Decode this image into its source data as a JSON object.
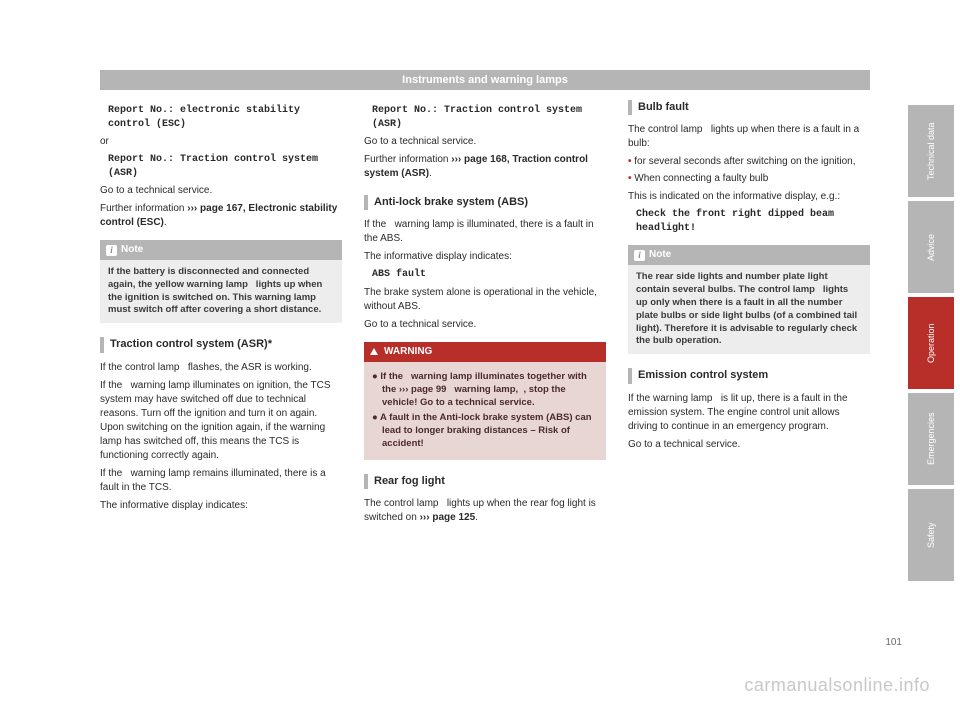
{
  "chapter_title": "Instruments and warning lamps",
  "page_number": "101",
  "watermark": "carmanualsonline.info",
  "sidetabs": [
    "Technical data",
    "Advice",
    "Operation",
    "Emergencies",
    "Safety"
  ],
  "col1": {
    "mono1": "Report No.: electronic stability control (ESC)",
    "or": "or",
    "mono2": "Report No.: Traction control system (ASR)",
    "goto": "Go to a technical service.",
    "further_a": "Further information ",
    "further_ref": "››› page 167, Electronic stability control (ESC)",
    "further_dot": ".",
    "note_label": "Note",
    "note_body": "If the battery is disconnected and connected again, the yellow warning lamp   lights up when the ignition is switched on. This warning lamp must switch off after covering a short distance.",
    "sec_traction": "Traction control system (ASR)*  ",
    "p1": "If the control lamp   flashes, the ASR is working.",
    "p2": "If the   warning lamp illuminates on ignition, the TCS system may have switched off due to technical reasons. Turn off the ignition and turn it on again. Upon switching on the ignition again, if the warning lamp has switched off, this means the TCS is functioning correctly again.",
    "p3": "If the   warning lamp remains illuminated, there is a fault in the TCS.",
    "p4": "The informative display indicates:"
  },
  "col2": {
    "mono1": "Report No.: Traction control system (ASR)",
    "goto": "Go to a technical service.",
    "further_a": "Further information ",
    "further_ref": "››› page 168, Traction control system (ASR)",
    "further_dot": ".",
    "sec_abs": "Anti-lock brake system (ABS)  ",
    "p_abs1": "If the   warning lamp is illuminated, there is a fault in the ABS.",
    "p_abs2": "The informative display indicates:",
    "mono_abs": "ABS fault",
    "p_abs3": "The brake system alone is operational in the vehicle, without ABS.",
    "goto2": "Go to a technical service.",
    "warn_label": "WARNING",
    "warn_b1": "● If the   warning lamp illuminates together with the ››› page 99   warning lamp,  , stop the vehicle! Go to a technical service.",
    "warn_b2": "● A fault in the Anti-lock brake system (ABS) can lead to longer braking distances – Risk of accident!",
    "sec_rearfog": "Rear fog light  ",
    "p_rf_a": "The control lamp   lights up when the rear fog light is switched on ",
    "p_rf_ref": "››› page 125",
    "p_rf_dot": "."
  },
  "col3": {
    "sec_bulb": "Bulb fault  ",
    "p_b1": "The control lamp   lights up when there is a fault in a bulb:",
    "li1": "for several seconds after switching on the ignition,",
    "li2": "When connecting a faulty bulb",
    "p_b2": "This is indicated on the informative display, e.g.:",
    "mono_b": "Check the front right dipped beam headlight!",
    "note_label": "Note",
    "note_body": "The rear side lights and number plate light contain several bulbs. The control lamp   lights up only when there is a fault in all the number plate bulbs or side light bulbs (of a combined tail light). Therefore it is advisable to regularly check the bulb operation.",
    "sec_emis": "Emission control system  ",
    "p_e1": "If the warning lamp   is lit up, there is a fault in the emission system. The engine control unit allows driving to continue in an emergency program.",
    "goto": "Go to a technical service."
  },
  "colors": {
    "gray": "#b5b5b5",
    "red": "#b82f2a",
    "gray_light": "#ededed",
    "red_light": "#e8d6d5"
  }
}
